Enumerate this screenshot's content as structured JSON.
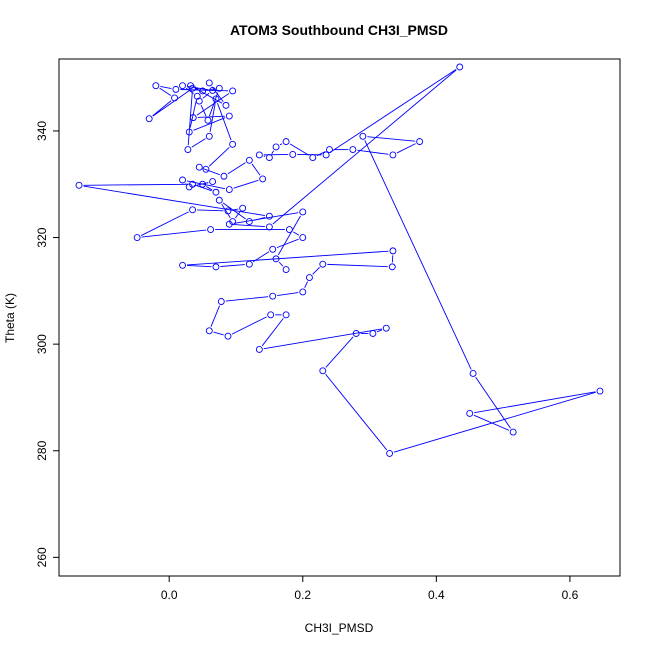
{
  "chart_data": {
    "type": "line",
    "title": "ATOM3 Southbound CH3I_PMSD",
    "xlabel": "CH3I_PMSD",
    "ylabel": "Theta (K)",
    "xlim": [
      -0.165,
      0.675
    ],
    "ylim": [
      256.5,
      353.5
    ],
    "x_ticks": [
      0.0,
      0.2,
      0.4,
      0.6
    ],
    "x_tick_labels": [
      "0.0",
      "0.2",
      "0.4",
      "0.6"
    ],
    "y_ticks": [
      260,
      280,
      300,
      320,
      340
    ],
    "y_tick_labels": [
      "260",
      "280",
      "300",
      "320",
      "340"
    ],
    "grid": false,
    "legend": "none",
    "series_color": "#0000ff",
    "marker": "open-circle",
    "points": [
      [
        0.06,
        349.0
      ],
      [
        0.085,
        344.8
      ],
      [
        0.032,
        348.5
      ],
      [
        0.05,
        347.5
      ],
      [
        0.075,
        348.0
      ],
      [
        0.058,
        342.0
      ],
      [
        0.045,
        345.6
      ],
      [
        0.065,
        347.6
      ],
      [
        0.02,
        348.5
      ],
      [
        0.042,
        346.5
      ],
      [
        0.03,
        339.8
      ],
      [
        0.09,
        342.8
      ],
      [
        0.036,
        342.5
      ],
      [
        0.095,
        347.5
      ],
      [
        0.01,
        347.8
      ],
      [
        -0.02,
        348.5
      ],
      [
        0.008,
        346.2
      ],
      [
        -0.03,
        342.3
      ],
      [
        0.035,
        348.0
      ],
      [
        0.028,
        336.5
      ],
      [
        0.06,
        339.0
      ],
      [
        0.07,
        346.0
      ],
      [
        0.095,
        337.5
      ],
      [
        0.055,
        332.8
      ],
      [
        0.045,
        333.2
      ],
      [
        0.082,
        331.5
      ],
      [
        0.12,
        334.5
      ],
      [
        0.14,
        331.0
      ],
      [
        0.09,
        329.0
      ],
      [
        0.02,
        330.8
      ],
      [
        0.03,
        329.5
      ],
      [
        0.065,
        330.5
      ],
      [
        0.05,
        330.0
      ],
      [
        0.07,
        328.5
      ],
      [
        0.035,
        330.0
      ],
      [
        -0.135,
        329.8
      ],
      [
        0.15,
        324.0
      ],
      [
        0.12,
        323.0
      ],
      [
        0.075,
        327.0
      ],
      [
        0.095,
        323.0
      ],
      [
        0.11,
        325.5
      ],
      [
        0.088,
        325.0
      ],
      [
        0.035,
        325.2
      ],
      [
        -0.048,
        320.0
      ],
      [
        0.062,
        321.5
      ],
      [
        0.18,
        321.5
      ],
      [
        0.2,
        320.0
      ],
      [
        0.155,
        317.8
      ],
      [
        0.12,
        315.0
      ],
      [
        0.07,
        314.5
      ],
      [
        0.02,
        314.8
      ],
      [
        0.335,
        317.5
      ],
      [
        0.334,
        314.5
      ],
      [
        0.23,
        315.0
      ],
      [
        0.21,
        312.5
      ],
      [
        0.2,
        309.8
      ],
      [
        0.155,
        309.0
      ],
      [
        0.078,
        308.0
      ],
      [
        0.06,
        302.5
      ],
      [
        0.088,
        301.5
      ],
      [
        0.152,
        305.5
      ],
      [
        0.175,
        305.5
      ],
      [
        0.135,
        299.0
      ],
      [
        0.325,
        303.0
      ],
      [
        0.305,
        302.0
      ],
      [
        0.28,
        302.0
      ],
      [
        0.23,
        295.0
      ],
      [
        0.33,
        279.5
      ],
      [
        0.645,
        291.2
      ],
      [
        0.45,
        287.0
      ],
      [
        0.515,
        283.5
      ],
      [
        0.455,
        294.5
      ],
      [
        0.29,
        339.0
      ],
      [
        0.375,
        338.0
      ],
      [
        0.335,
        335.5
      ],
      [
        0.275,
        336.5
      ],
      [
        0.24,
        336.5
      ],
      [
        0.215,
        335.0
      ],
      [
        0.175,
        338.0
      ],
      [
        0.16,
        337.0
      ],
      [
        0.15,
        335.0
      ],
      [
        0.135,
        335.5
      ],
      [
        0.185,
        335.6
      ],
      [
        0.235,
        335.5
      ],
      [
        0.435,
        352.0
      ],
      [
        0.15,
        322.0
      ],
      [
        0.09,
        322.5
      ],
      [
        0.2,
        324.8
      ],
      [
        0.16,
        316.0
      ],
      [
        0.175,
        314.0
      ]
    ],
    "path_order": [
      0,
      1,
      2,
      3,
      4,
      5,
      6,
      7,
      8,
      9,
      10,
      11,
      12,
      13,
      14,
      15,
      16,
      17,
      18,
      19,
      20,
      21,
      22,
      23,
      24,
      25,
      26,
      27,
      28,
      29,
      30,
      31,
      32,
      33,
      34,
      35,
      36,
      37,
      38,
      39,
      40,
      41,
      42,
      43,
      44,
      45,
      46,
      47,
      48,
      49,
      50,
      51,
      52,
      53,
      54,
      55,
      56,
      57,
      58,
      59,
      60,
      61,
      62,
      63,
      64,
      65,
      66,
      67,
      68,
      69,
      70,
      71,
      72,
      73,
      74,
      75,
      76,
      77,
      78,
      79,
      80,
      81,
      82,
      83,
      84,
      85,
      86,
      87,
      88,
      89
    ]
  }
}
